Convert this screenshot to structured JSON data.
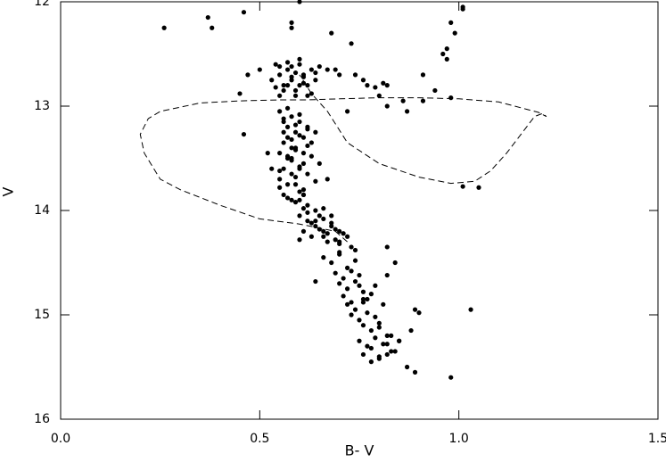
{
  "chart_data": {
    "type": "scatter",
    "xlabel": "B- V",
    "ylabel": "V",
    "xlim": [
      0,
      1.5
    ],
    "ylim": [
      12,
      16
    ],
    "y_inverted": true,
    "xticks": [
      {
        "value": 0,
        "label": "0.0"
      },
      0.5,
      {
        "value": 1,
        "label": "1.0"
      },
      1.5
    ],
    "yticks": [
      12,
      13,
      14,
      15,
      16
    ],
    "series": [
      {
        "type": "scatter",
        "color": "#000000",
        "x": [
          0.26,
          0.37,
          0.38,
          0.46,
          0.6,
          0.58,
          0.58,
          0.68,
          0.73,
          0.98,
          0.99,
          1.01,
          1.01,
          0.97,
          0.96,
          0.97,
          0.91,
          0.94,
          0.98,
          0.91,
          0.74,
          0.76,
          0.77,
          0.79,
          0.81,
          0.82,
          0.8,
          0.86,
          0.87,
          0.82,
          0.69,
          0.7,
          0.67,
          0.72,
          0.45,
          0.46,
          0.47,
          0.5,
          1.01,
          1.05,
          0.54,
          0.55,
          0.56,
          0.57,
          0.58,
          0.59,
          0.6,
          0.61,
          0.62,
          0.63,
          0.64,
          0.65,
          0.55,
          0.57,
          0.59,
          0.61,
          0.63,
          0.53,
          0.56,
          0.58,
          0.6,
          0.62,
          0.64,
          0.55,
          0.57,
          0.59,
          0.61,
          0.54,
          0.58,
          0.6,
          0.55,
          0.56,
          0.57,
          0.58,
          0.59,
          0.6,
          0.61,
          0.62,
          0.56,
          0.58,
          0.6,
          0.62,
          0.55,
          0.57,
          0.59,
          0.61,
          0.63,
          0.56,
          0.58,
          0.6,
          0.55,
          0.57,
          0.59,
          0.61,
          0.64,
          0.56,
          0.58,
          0.6,
          0.62,
          0.55,
          0.57,
          0.59,
          0.61,
          0.56,
          0.58,
          0.6,
          0.63,
          0.55,
          0.57,
          0.59,
          0.61,
          0.65,
          0.56,
          0.58,
          0.6,
          0.62,
          0.57,
          0.59,
          0.61,
          0.64,
          0.52,
          0.53,
          0.66,
          0.67,
          0.58,
          0.6,
          0.62,
          0.57,
          0.59,
          0.61,
          0.6,
          0.62,
          0.64,
          0.66,
          0.68,
          0.7,
          0.61,
          0.63,
          0.65,
          0.67,
          0.69,
          0.62,
          0.64,
          0.66,
          0.68,
          0.7,
          0.72,
          0.63,
          0.65,
          0.67,
          0.69,
          0.71,
          0.73,
          0.6,
          0.64,
          0.68,
          0.7,
          0.74,
          0.66,
          0.7,
          0.66,
          0.68,
          0.7,
          0.72,
          0.74,
          0.69,
          0.71,
          0.73,
          0.75,
          0.7,
          0.72,
          0.74,
          0.76,
          0.71,
          0.73,
          0.75,
          0.77,
          0.72,
          0.74,
          0.76,
          0.78,
          0.73,
          0.75,
          0.77,
          0.79,
          0.8,
          0.64,
          0.82,
          0.84,
          0.82,
          0.76,
          0.78,
          0.8,
          0.82,
          0.75,
          0.77,
          0.79,
          0.81,
          0.83,
          0.76,
          0.78,
          0.8,
          0.82,
          0.84,
          0.78,
          0.8,
          0.82,
          0.85,
          0.79,
          0.81,
          0.83,
          0.89,
          0.88,
          0.87,
          0.89,
          0.98,
          1.03,
          0.9,
          0.85,
          0.76
        ],
        "values": [
          12.25,
          12.15,
          12.25,
          12.1,
          12.0,
          12.2,
          12.25,
          12.3,
          12.4,
          12.2,
          12.3,
          12.05,
          12.07,
          12.45,
          12.5,
          12.55,
          12.7,
          12.85,
          12.92,
          12.95,
          12.7,
          12.75,
          12.8,
          12.82,
          12.78,
          12.8,
          12.9,
          12.95,
          13.05,
          13.0,
          12.65,
          12.7,
          12.65,
          13.05,
          12.88,
          13.27,
          12.7,
          12.65,
          13.77,
          13.78,
          12.6,
          12.7,
          12.8,
          12.65,
          12.75,
          12.85,
          12.6,
          12.7,
          12.8,
          12.65,
          12.75,
          12.62,
          12.9,
          12.58,
          12.68,
          12.78,
          12.88,
          12.75,
          12.85,
          12.72,
          12.55,
          12.9,
          12.68,
          12.62,
          12.8,
          12.9,
          12.72,
          12.82,
          12.62,
          12.8,
          13.05,
          13.12,
          13.2,
          13.1,
          13.25,
          13.15,
          13.3,
          13.22,
          13.35,
          13.4,
          13.28,
          13.38,
          13.45,
          13.5,
          13.42,
          13.55,
          13.48,
          13.6,
          13.65,
          13.58,
          13.7,
          13.75,
          13.68,
          13.8,
          13.72,
          13.85,
          13.9,
          13.82,
          13.95,
          13.62,
          13.3,
          13.18,
          13.45,
          13.25,
          13.52,
          13.6,
          13.35,
          13.78,
          13.88,
          13.92,
          13.98,
          13.55,
          13.15,
          13.32,
          13.08,
          13.2,
          13.02,
          13.4,
          13.85,
          13.25,
          13.45,
          13.6,
          13.98,
          13.7,
          13.5,
          13.9,
          13.65,
          13.48,
          13.75,
          13.85,
          14.05,
          14.1,
          14.15,
          14.08,
          14.12,
          14.2,
          14.2,
          14.25,
          14.18,
          14.22,
          14.28,
          14.02,
          14.0,
          14.25,
          14.15,
          14.3,
          14.25,
          14.12,
          14.05,
          14.3,
          14.18,
          14.22,
          14.35,
          14.28,
          14.1,
          14.05,
          14.32,
          14.38,
          14.2,
          14.4,
          14.45,
          14.5,
          14.42,
          14.55,
          14.48,
          14.6,
          14.65,
          14.58,
          14.62,
          14.7,
          14.75,
          14.68,
          14.78,
          14.82,
          14.88,
          14.72,
          14.85,
          14.9,
          14.95,
          14.88,
          14.8,
          15.0,
          15.05,
          14.98,
          15.02,
          15.08,
          14.68,
          14.62,
          14.5,
          14.35,
          15.1,
          15.15,
          15.12,
          15.2,
          15.25,
          15.3,
          15.22,
          15.28,
          15.35,
          15.38,
          15.32,
          15.4,
          15.28,
          15.35,
          15.45,
          15.42,
          15.38,
          15.25,
          14.72,
          14.9,
          15.2,
          14.95,
          15.15,
          15.5,
          15.55,
          15.6,
          14.95,
          14.98,
          15.25,
          14.85
        ]
      },
      {
        "type": "line",
        "color": "#000000",
        "dashed": true,
        "x": [
          0.72,
          0.69,
          0.6,
          0.5,
          0.4,
          0.3,
          0.25,
          0.21,
          0.2,
          0.22,
          0.25,
          0.35,
          0.45,
          0.55,
          0.62,
          0.7,
          0.8,
          0.9,
          1.0,
          1.1,
          1.17,
          1.2,
          1.22,
          1.21,
          1.19,
          1.16,
          1.12,
          1.08,
          1.04,
          0.98,
          0.9,
          0.8,
          0.72,
          0.67,
          0.63,
          0.6
        ],
        "values": [
          14.3,
          14.2,
          14.13,
          14.08,
          13.95,
          13.8,
          13.7,
          13.45,
          13.27,
          13.12,
          13.05,
          12.97,
          12.95,
          12.94,
          12.94,
          12.93,
          12.92,
          12.92,
          12.93,
          12.96,
          13.03,
          13.06,
          13.1,
          13.07,
          13.1,
          13.25,
          13.45,
          13.62,
          13.72,
          13.74,
          13.68,
          13.55,
          13.35,
          13.05,
          12.88,
          12.7
        ]
      }
    ]
  }
}
